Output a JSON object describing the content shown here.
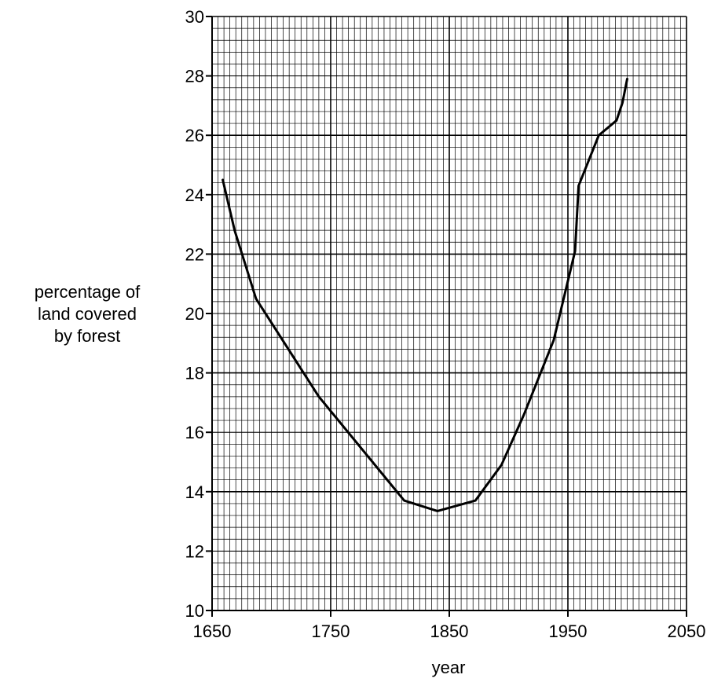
{
  "chart_data": {
    "type": "line",
    "title": "",
    "xlabel": "year",
    "ylabel_lines": [
      "percentage of",
      "land covered",
      "by forest"
    ],
    "xlim": [
      1650,
      2050
    ],
    "ylim": [
      10,
      30
    ],
    "x_major_step": 100,
    "y_major_step": 2,
    "x_minor_step": 5,
    "y_minor_step": 0.4,
    "x_tick_labels": [
      "1650",
      "1750",
      "1850",
      "1950",
      "2050"
    ],
    "y_tick_labels": [
      "10",
      "12",
      "14",
      "16",
      "18",
      "20",
      "22",
      "24",
      "26",
      "28",
      "30"
    ],
    "grid": true,
    "series": [
      {
        "x": [
          1659,
          1669,
          1687,
          1740,
          1812,
          1840,
          1872,
          1894,
          1913,
          1938,
          1956,
          1959,
          1976,
          1991,
          1996,
          2000
        ],
        "y": [
          24.5,
          22.8,
          20.5,
          17.2,
          13.7,
          13.35,
          13.7,
          14.9,
          16.6,
          19.1,
          22.1,
          24.3,
          26.0,
          26.5,
          27.1,
          27.9
        ]
      }
    ],
    "colors": {
      "line": "#000000",
      "grid_minor": "#000000",
      "grid_major": "#000000"
    }
  }
}
